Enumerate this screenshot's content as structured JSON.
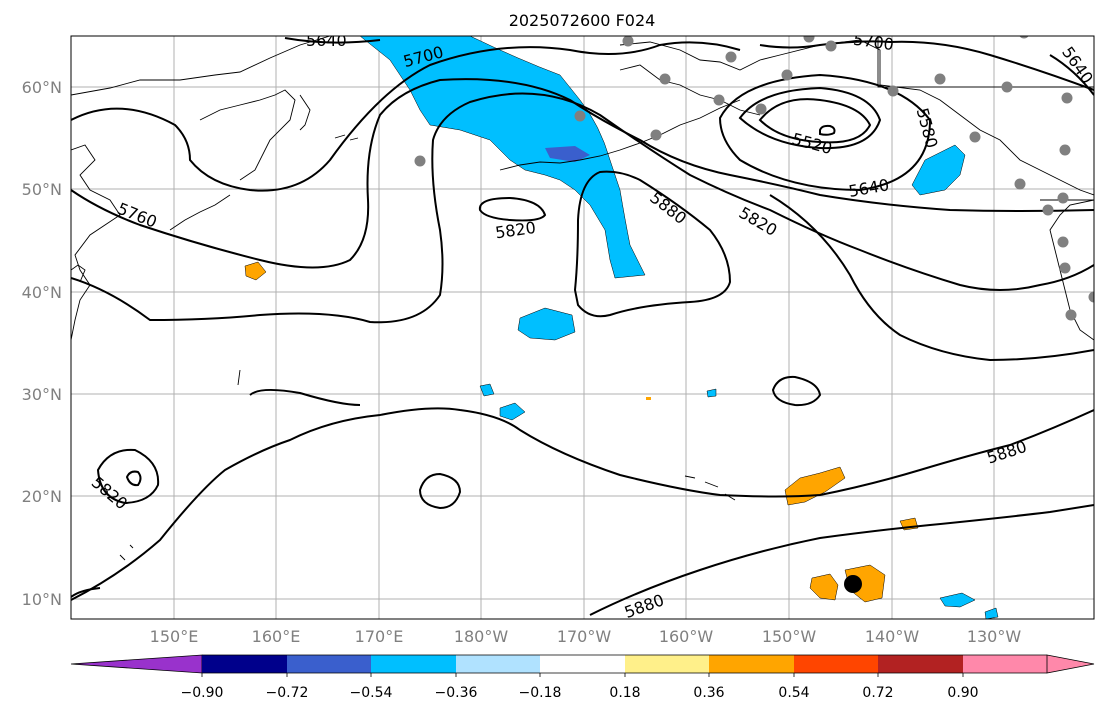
{
  "title": "2025072600 F024",
  "map": {
    "lat_labels": [
      "60°N",
      "50°N",
      "40°N",
      "30°N",
      "20°N",
      "10°N"
    ],
    "lon_labels": [
      "150°E",
      "160°E",
      "170°E",
      "180°W",
      "170°W",
      "160°W",
      "150°W",
      "140°W",
      "130°W"
    ],
    "contour_labels": [
      {
        "id": "c5640a",
        "text": "5640"
      },
      {
        "id": "c5700a",
        "text": "5700"
      },
      {
        "id": "c5700b",
        "text": "5700"
      },
      {
        "id": "c5640b",
        "text": "5640"
      },
      {
        "id": "c5580",
        "text": "5580"
      },
      {
        "id": "c5520",
        "text": "5520"
      },
      {
        "id": "c5640c",
        "text": "5640"
      },
      {
        "id": "c5760",
        "text": "5760"
      },
      {
        "id": "c5820a",
        "text": "5820"
      },
      {
        "id": "c5880a",
        "text": "5880"
      },
      {
        "id": "c5820b",
        "text": "5820"
      },
      {
        "id": "c5880b",
        "text": "5880"
      },
      {
        "id": "c5820c",
        "text": "5820"
      },
      {
        "id": "c5880c",
        "text": "5880"
      }
    ],
    "colors": {
      "cyan": "#00bfff",
      "blue": "#3a5fcd",
      "orange": "#ffa500",
      "station": "#808080"
    }
  },
  "colorbar": {
    "labels": [
      "−0.90",
      "−0.72",
      "−0.54",
      "−0.36",
      "−0.18",
      "0.18",
      "0.36",
      "0.54",
      "0.72",
      "0.90"
    ],
    "colors": [
      "#9932cc",
      "#00008b",
      "#3a5fcd",
      "#00bfff",
      "#b0e2ff",
      "#ffffff",
      "#fff08a",
      "#ffa500",
      "#ff4500",
      "#b22222",
      "#ff88aa"
    ]
  }
}
